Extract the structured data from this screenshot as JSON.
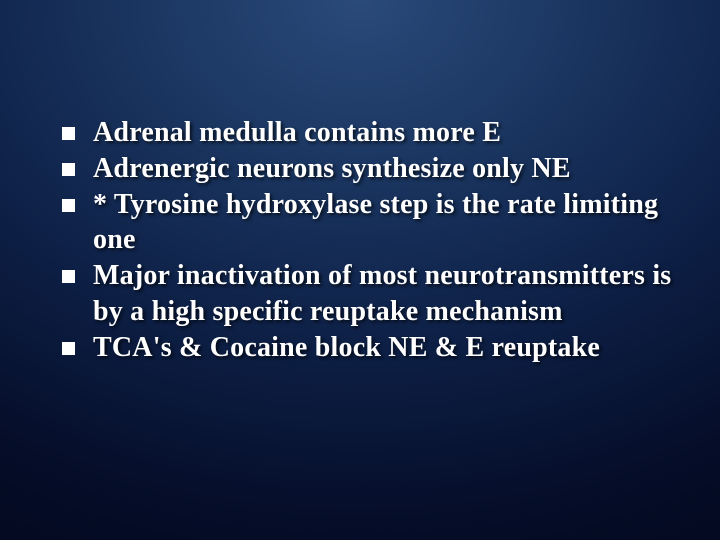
{
  "slide": {
    "background": {
      "gradient_center": "#2a4a7a",
      "gradient_mid1": "#1a3560",
      "gradient_mid2": "#0d1f45",
      "gradient_outer1": "#050d28",
      "gradient_outer2": "#020618"
    },
    "text_color": "#ffffff",
    "bullet_color": "#ffffff",
    "font_family": "Times New Roman",
    "font_size_pt": 21,
    "font_weight": "bold",
    "bullets": [
      {
        "text": "Adrenal medulla contains more E"
      },
      {
        "text": "Adrenergic neurons synthesize only NE"
      },
      {
        "text": "* Tyrosine hydroxylase step is the rate limiting one"
      },
      {
        "text": "Major inactivation of most neurotransmitters is by a high specific reuptake mechanism"
      },
      {
        "text": "TCA's & Cocaine block NE & E reuptake"
      }
    ]
  }
}
